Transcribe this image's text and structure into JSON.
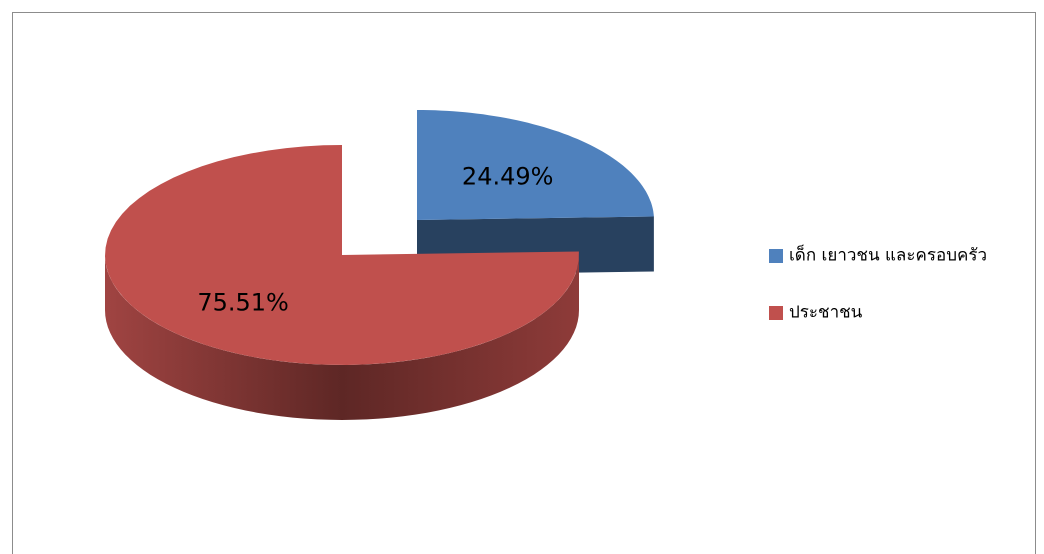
{
  "chart_data": {
    "type": "pie",
    "categories": [
      "เด็ก เยาวชน และครอบครัว",
      "ประชาชน"
    ],
    "values": [
      24.49,
      75.51
    ],
    "value_labels": [
      "24.49%",
      "75.51%"
    ],
    "colors": [
      "#4f81bd",
      "#c0504d"
    ],
    "legend": "right"
  }
}
